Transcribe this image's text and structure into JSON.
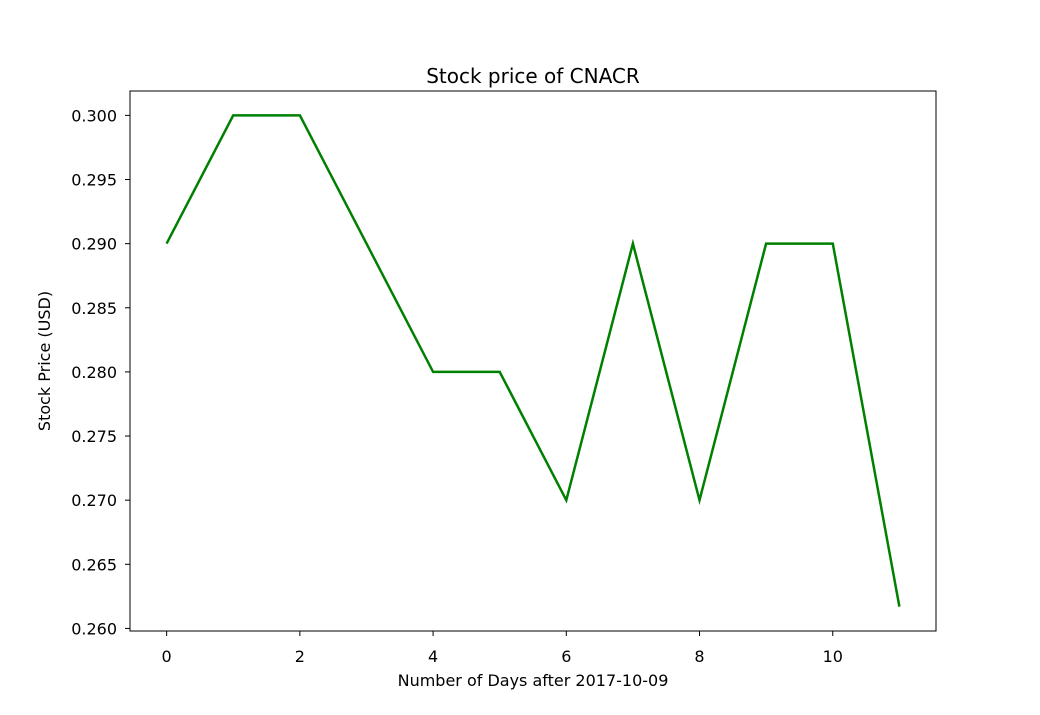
{
  "chart_data": {
    "type": "line",
    "title": "Stock price of CNACR",
    "xlabel": "Number of Days after 2017-10-09",
    "ylabel": "Stock Price (USD)",
    "xlim": [
      -0.55,
      11.55
    ],
    "ylim": [
      0.2598,
      0.3019
    ],
    "xticks": [
      0,
      2,
      4,
      6,
      8,
      10
    ],
    "yticks": [
      0.26,
      0.265,
      0.27,
      0.275,
      0.28,
      0.285,
      0.29,
      0.295,
      0.3
    ],
    "ytick_labels": [
      "0.260",
      "0.265",
      "0.270",
      "0.275",
      "0.280",
      "0.285",
      "0.290",
      "0.295",
      "0.300"
    ],
    "grid": false,
    "series": [
      {
        "color": "#008000",
        "x": [
          0,
          1,
          2,
          3,
          4,
          5,
          6,
          7,
          8,
          9,
          10,
          11
        ],
        "y": [
          0.29,
          0.3,
          0.3,
          0.29,
          0.28,
          0.28,
          0.27,
          0.29,
          0.27,
          0.29,
          0.29,
          0.2617
        ]
      }
    ]
  }
}
